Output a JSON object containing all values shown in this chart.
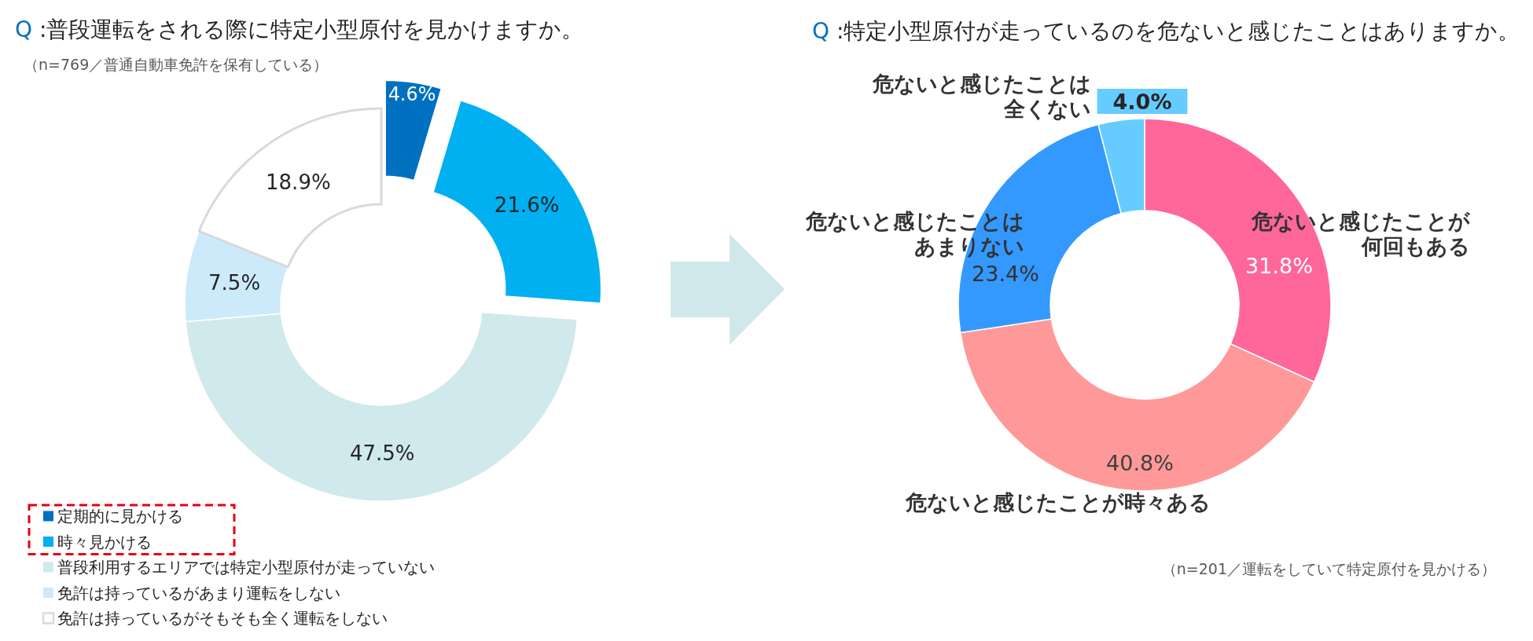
{
  "chart_data": [
    {
      "type": "donut",
      "title": "Q :普段運転をされる際に特定小型原付を見かけますか。",
      "subtitle": "（n=769／普通自動車免許を保有している）",
      "categories": [
        "定期的に見かける",
        "時々見かける",
        "普段利用するエリアでは特定小型原付が走っていない",
        "免許は持っているがあまり運転をしない",
        "免許は持っているがそもそも全く運転をしない"
      ],
      "values": [
        4.6,
        21.6,
        47.5,
        7.5,
        18.9
      ],
      "colors": [
        "#0070c0",
        "#00b0f0",
        "#d0e9ed",
        "#cdeafb",
        "#ffffff"
      ],
      "value_labels": [
        "4.6%",
        "21.6%",
        "47.5%",
        "7.5%",
        "18.9%"
      ],
      "legend": "bottom left"
    },
    {
      "type": "donut",
      "title": "Q :特定小型原付が走っているのを危ないと感じたことはありますか。",
      "categories": [
        "危ないと感じたことが何回もある",
        "危ないと感じたことが時々ある",
        "危ないと感じたことはあまりない",
        "危ないと感じたことは全くない"
      ],
      "values": [
        31.8,
        40.8,
        23.4,
        4.0
      ],
      "colors": [
        "#ff6699",
        "#ff9999",
        "#3399ff",
        "#66ccff"
      ],
      "value_labels": [
        "31.8%",
        "40.8%",
        "23.4%",
        "4.0%"
      ],
      "annotations": [
        "（n=201／運転をしていて特定原付を見かける）"
      ]
    }
  ]
}
